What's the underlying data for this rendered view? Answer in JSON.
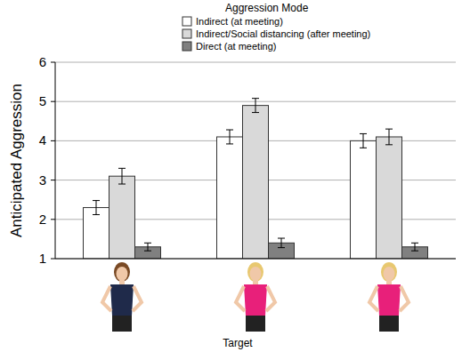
{
  "chart_data": {
    "type": "bar",
    "legend_title": "Aggression Mode",
    "x_label": "Target",
    "y_label": "Anticipated Aggression",
    "categories": [
      null,
      null,
      null
    ],
    "series": [
      {
        "name": "Indirect (at meeting)",
        "color": "#ffffff",
        "values": [
          2.3,
          4.1,
          4.0
        ],
        "errors": [
          0.18,
          0.18,
          0.18
        ]
      },
      {
        "name": "Indirect/Social distancing (after meeting)",
        "color": "#d9d9d9",
        "values": [
          3.1,
          4.9,
          4.1
        ],
        "errors": [
          0.2,
          0.18,
          0.2
        ]
      },
      {
        "name": "Direct (at meeting)",
        "color": "#808080",
        "values": [
          1.3,
          1.4,
          1.3
        ],
        "errors": [
          0.1,
          0.12,
          0.1
        ]
      }
    ],
    "ylim": [
      1,
      6
    ],
    "yticks": [
      1,
      2,
      3,
      4,
      5,
      6
    ],
    "grid": true,
    "legend": "top"
  }
}
